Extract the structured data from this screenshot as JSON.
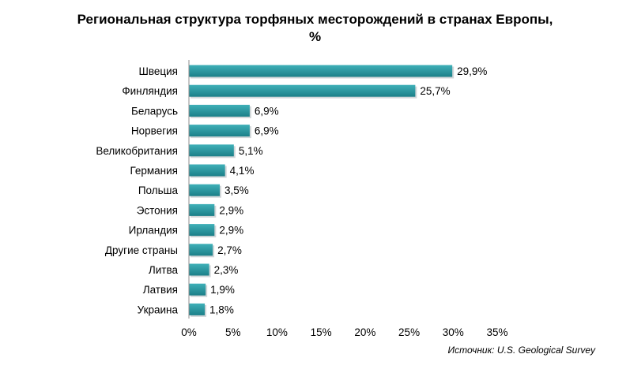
{
  "chart_data": {
    "type": "bar",
    "orientation": "horizontal",
    "title_lines": [
      "Региональная структура торфяных месторождений в странах Европы,",
      "%"
    ],
    "source": "Источник: U.S. Geological Survey",
    "categories": [
      "Швеция",
      "Финляндия",
      "Беларусь",
      "Норвегия",
      "Великобритания",
      "Германия",
      "Польша",
      "Эстония",
      "Ирландия",
      "Другие страны",
      "Литва",
      "Латвия",
      "Украина"
    ],
    "values": [
      29.9,
      25.7,
      6.9,
      6.9,
      5.1,
      4.1,
      3.5,
      2.9,
      2.9,
      2.7,
      2.3,
      1.9,
      1.8
    ],
    "value_labels": [
      "29,9%",
      "25,7%",
      "6,9%",
      "6,9%",
      "5,1%",
      "4,1%",
      "3,5%",
      "2,9%",
      "2,9%",
      "2,7%",
      "2,3%",
      "1,9%",
      "1,8%"
    ],
    "xticks": [
      0,
      5,
      10,
      15,
      20,
      25,
      30,
      35
    ],
    "xtick_labels": [
      "0%",
      "5%",
      "10%",
      "15%",
      "20%",
      "25%",
      "30%",
      "35%"
    ],
    "xlim": [
      0,
      35
    ],
    "grid": false,
    "legend": "none",
    "colors": {
      "bar_top": "#3fb0b8",
      "bar_bottom": "#1b7f88",
      "bar_shadow": "#9aa5a8",
      "axis": "#8c8c8c"
    }
  }
}
